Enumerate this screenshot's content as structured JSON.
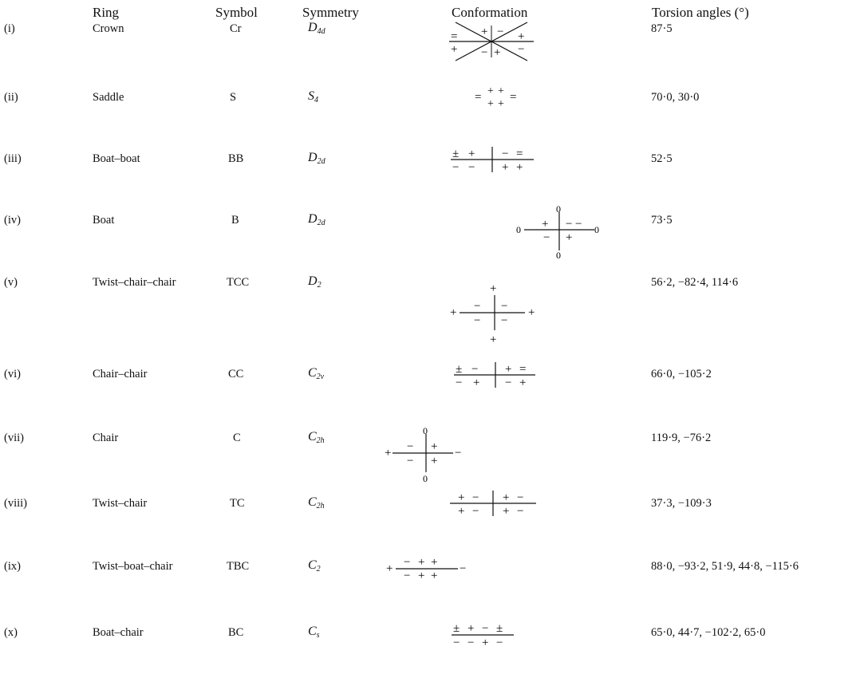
{
  "headers": {
    "ring": "Ring",
    "symbol": "Symbol",
    "symmetry": "Symmetry",
    "conformation": "Conformation",
    "torsion": "Torsion angles (°)"
  },
  "rows": [
    {
      "index": "(i)",
      "ring": "Crown",
      "symbol": "Cr",
      "sym_base": "D",
      "sym_sub": "4d",
      "torsion": "87·5"
    },
    {
      "index": "(ii)",
      "ring": "Saddle",
      "symbol": "S",
      "sym_base": "S",
      "sym_sub": "4",
      "torsion": "70·0, 30·0"
    },
    {
      "index": "(iii)",
      "ring": "Boat–boat",
      "symbol": "BB",
      "sym_base": "D",
      "sym_sub": "2d",
      "torsion": "52·5"
    },
    {
      "index": "(iv)",
      "ring": "Boat",
      "symbol": "B",
      "sym_base": "D",
      "sym_sub": "2d",
      "torsion": "73·5"
    },
    {
      "index": "(v)",
      "ring": "Twist–chair–chair",
      "symbol": "TCC",
      "sym_base": "D",
      "sym_sub": "2",
      "torsion": "56·2, −82·4, 114·6"
    },
    {
      "index": "(vi)",
      "ring": "Chair–chair",
      "symbol": "CC",
      "sym_base": "C",
      "sym_sub": "2v",
      "torsion": "66·0, −105·2"
    },
    {
      "index": "(vii)",
      "ring": "Chair",
      "symbol": "C",
      "sym_base": "C",
      "sym_sub": "2h",
      "torsion": "119·9, −76·2"
    },
    {
      "index": "(viii)",
      "ring": "Twist–chair",
      "symbol": "TC",
      "sym_base": "C",
      "sym_sub": "2h",
      "torsion": "37·3, −109·3"
    },
    {
      "index": "(ix)",
      "ring": "Twist–boat–chair",
      "symbol": "TBC",
      "sym_base": "C",
      "sym_sub": "2",
      "torsion": "88·0, −93·2, 51·9, 44·8, −115·6"
    },
    {
      "index": "(x)",
      "ring": "Boat–chair",
      "symbol": "BC",
      "sym_base": "C",
      "sym_sub": "s",
      "torsion": "65·0, 44·7, −102·2, 65·0"
    }
  ]
}
